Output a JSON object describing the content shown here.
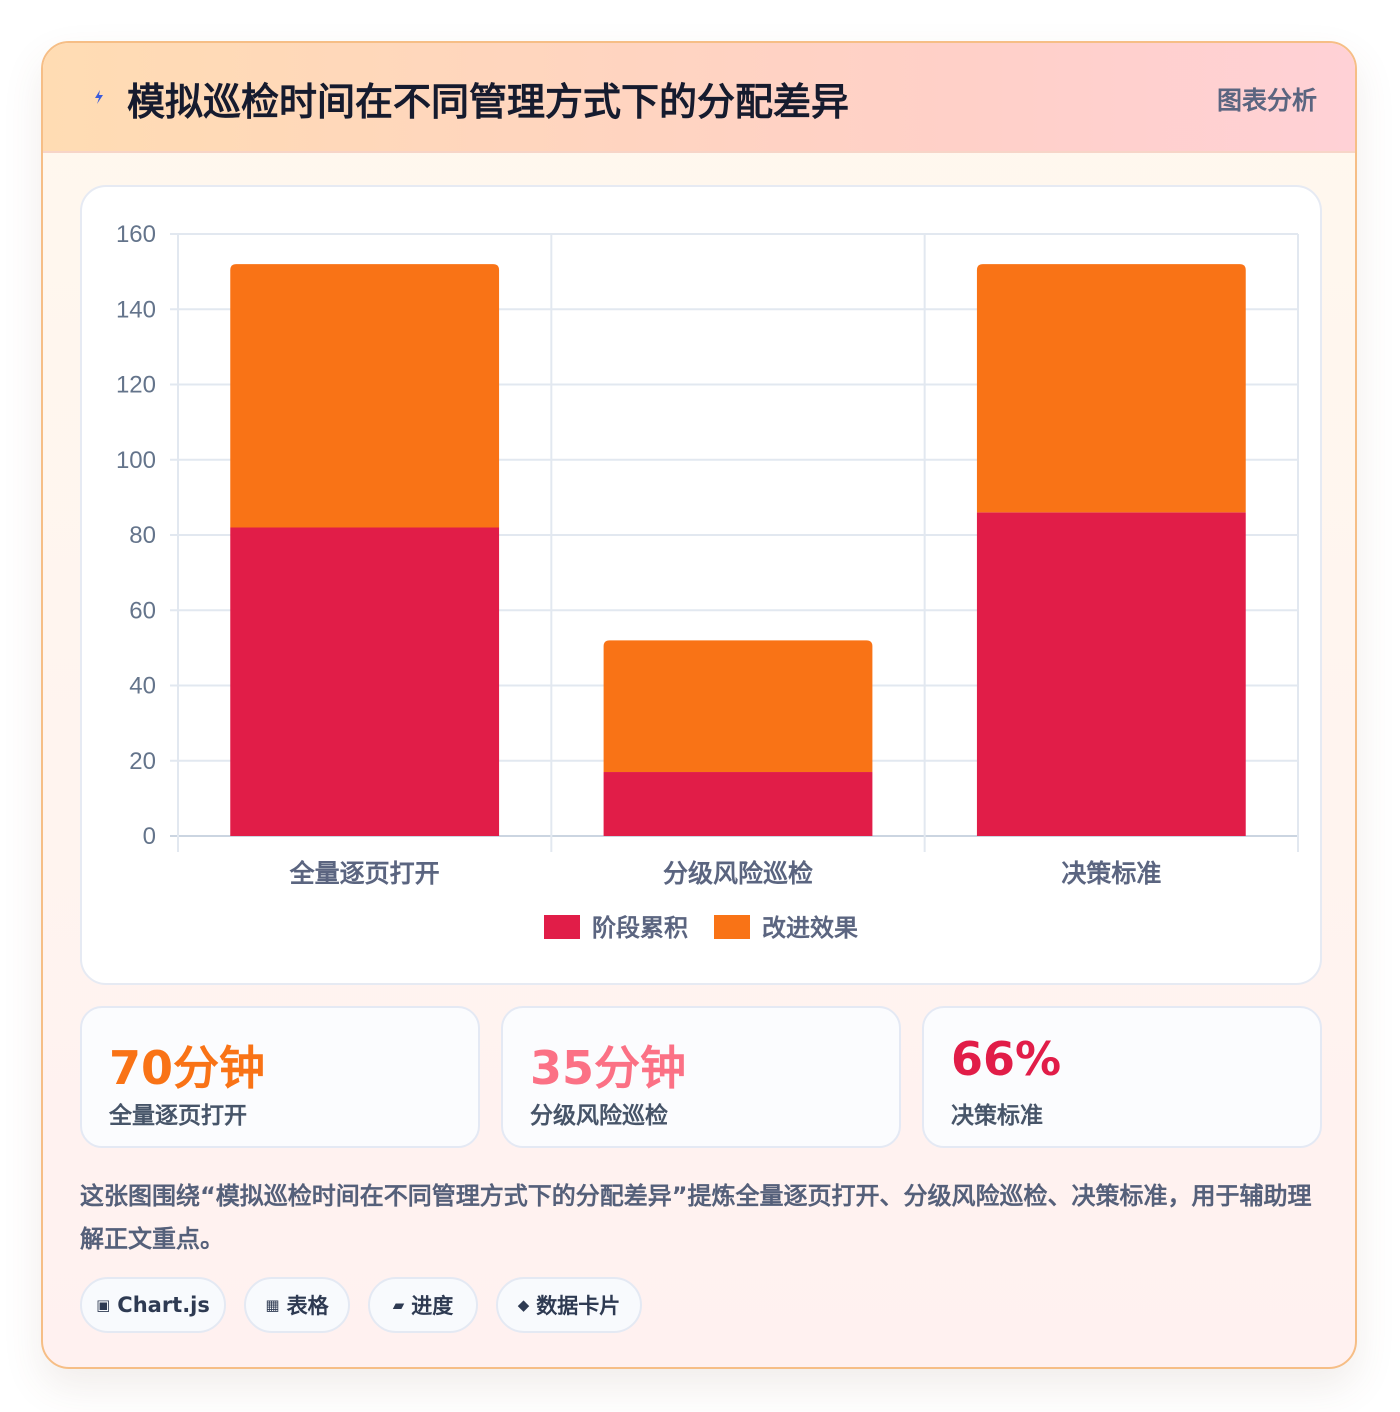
{
  "header": {
    "title": "模拟巡检时间在不同管理方式下的分配差异",
    "tag": "图表分析"
  },
  "chart_data": {
    "type": "bar",
    "stacked": true,
    "categories": [
      "全量逐页打开",
      "分级风险巡检",
      "决策标准"
    ],
    "series": [
      {
        "name": "阶段累积",
        "color": "#e11d48",
        "values": [
          82,
          17,
          86
        ]
      },
      {
        "name": "改进效果",
        "color": "#f97316",
        "values": [
          70,
          35,
          66
        ]
      }
    ],
    "ylim": [
      0,
      160
    ],
    "yticks": [
      0,
      20,
      40,
      60,
      80,
      100,
      120,
      140,
      160
    ],
    "grid": true,
    "legend_position": "bottom"
  },
  "stats": [
    {
      "value": "70分钟",
      "label": "全量逐页打开",
      "color": "#f97316"
    },
    {
      "value": "35分钟",
      "label": "分级风险巡检",
      "color": "#fb7185"
    },
    {
      "value": "66%",
      "label": "决策标准",
      "color": "#e11d48"
    }
  ],
  "caption": "这张图围绕“模拟巡检时间在不同管理方式下的分配差异”提炼全量逐页打开、分级风险巡检、决策标准，用于辅助理解正文重点。",
  "chips": [
    {
      "icon": "▣",
      "label": "Chart.js"
    },
    {
      "icon": "▦",
      "label": "表格"
    },
    {
      "icon": "▰",
      "label": "进度"
    },
    {
      "icon": "◆",
      "label": "数据卡片"
    }
  ]
}
